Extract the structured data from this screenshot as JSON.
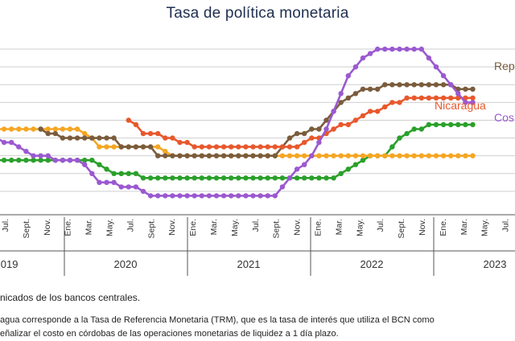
{
  "chart_data": {
    "type": "line",
    "title": "Tasa de política monetaria",
    "x_month_labels": [
      "Jul.",
      "Sept.",
      "Nov.",
      "Ene.",
      "Mar.",
      "May.",
      "Jul.",
      "Sept.",
      "Nov.",
      "Ene.",
      "Mar.",
      "May.",
      "Jul.",
      "Sept.",
      "Nov.",
      "Ene.",
      "Mar.",
      "May.",
      "Jul.",
      "Sept.",
      "Nov.",
      "Ene.",
      "Mar.",
      "May.",
      "Jul."
    ],
    "x_year_labels": [
      "2019",
      "2020",
      "2021",
      "2022",
      "2023"
    ],
    "series_labels": [
      {
        "key": "rd",
        "text": "Rep"
      },
      {
        "key": "ni",
        "text": "Nicaragua"
      },
      {
        "key": "cr",
        "text": "Cos"
      }
    ],
    "colors": {
      "rd": "#7a5c3c",
      "ni": "#e8582c",
      "cr": "#9b59d0",
      "gt": "#2ba02b",
      "or": "#f5a623",
      "grid": "#cfcfcf"
    },
    "series": [
      {
        "key": "rd",
        "points": [
          [
            6,
            4.5
          ],
          [
            7,
            4.25
          ],
          [
            8,
            4.25
          ],
          [
            9,
            4.0
          ],
          [
            10,
            4.0
          ],
          [
            11,
            4.0
          ],
          [
            12,
            4.0
          ],
          [
            13,
            4.0
          ],
          [
            14,
            4.0
          ],
          [
            15,
            4.0
          ],
          [
            16,
            4.0
          ],
          [
            17,
            3.5
          ],
          [
            18,
            3.5
          ],
          [
            19,
            3.5
          ],
          [
            20,
            3.5
          ],
          [
            21,
            3.5
          ],
          [
            22,
            3.0
          ],
          [
            23,
            3.0
          ],
          [
            24,
            3.0
          ],
          [
            25,
            3.0
          ],
          [
            26,
            3.0
          ],
          [
            27,
            3.0
          ],
          [
            28,
            3.0
          ],
          [
            29,
            3.0
          ],
          [
            30,
            3.0
          ],
          [
            31,
            3.0
          ],
          [
            32,
            3.0
          ],
          [
            33,
            3.0
          ],
          [
            34,
            3.0
          ],
          [
            35,
            3.0
          ],
          [
            36,
            3.0
          ],
          [
            37,
            3.0
          ],
          [
            38,
            3.0
          ],
          [
            39,
            3.5
          ],
          [
            40,
            4.0
          ],
          [
            41,
            4.25
          ],
          [
            42,
            4.25
          ],
          [
            43,
            4.5
          ],
          [
            44,
            4.5
          ],
          [
            45,
            5.0
          ],
          [
            46,
            5.5
          ],
          [
            47,
            6.0
          ],
          [
            48,
            6.25
          ],
          [
            49,
            6.5
          ],
          [
            50,
            6.75
          ],
          [
            51,
            6.75
          ],
          [
            52,
            6.75
          ],
          [
            53,
            7.0
          ],
          [
            54,
            7.0
          ],
          [
            55,
            7.0
          ],
          [
            56,
            7.0
          ],
          [
            57,
            7.0
          ],
          [
            58,
            7.0
          ],
          [
            59,
            7.0
          ],
          [
            60,
            7.0
          ],
          [
            61,
            7.0
          ],
          [
            62,
            7.0
          ],
          [
            63,
            6.75
          ],
          [
            64,
            6.75
          ],
          [
            65,
            6.75
          ]
        ]
      },
      {
        "key": "ni",
        "points": [
          [
            18,
            5.0
          ],
          [
            19,
            4.75
          ],
          [
            20,
            4.25
          ],
          [
            21,
            4.25
          ],
          [
            22,
            4.25
          ],
          [
            23,
            4.0
          ],
          [
            24,
            4.0
          ],
          [
            25,
            3.75
          ],
          [
            26,
            3.75
          ],
          [
            27,
            3.5
          ],
          [
            28,
            3.5
          ],
          [
            29,
            3.5
          ],
          [
            30,
            3.5
          ],
          [
            31,
            3.5
          ],
          [
            32,
            3.5
          ],
          [
            33,
            3.5
          ],
          [
            34,
            3.5
          ],
          [
            35,
            3.5
          ],
          [
            36,
            3.5
          ],
          [
            37,
            3.5
          ],
          [
            38,
            3.5
          ],
          [
            39,
            3.5
          ],
          [
            40,
            3.5
          ],
          [
            41,
            3.5
          ],
          [
            42,
            3.75
          ],
          [
            43,
            4.0
          ],
          [
            44,
            4.0
          ],
          [
            45,
            4.25
          ],
          [
            46,
            4.5
          ],
          [
            47,
            4.75
          ],
          [
            48,
            4.75
          ],
          [
            49,
            5.0
          ],
          [
            50,
            5.25
          ],
          [
            51,
            5.5
          ],
          [
            52,
            5.5
          ],
          [
            53,
            5.75
          ],
          [
            54,
            6.0
          ],
          [
            55,
            6.0
          ],
          [
            56,
            6.25
          ],
          [
            57,
            6.25
          ],
          [
            58,
            6.25
          ],
          [
            59,
            6.25
          ],
          [
            60,
            6.25
          ],
          [
            61,
            6.25
          ],
          [
            62,
            6.25
          ],
          [
            63,
            6.25
          ],
          [
            64,
            6.25
          ],
          [
            65,
            6.25
          ]
        ]
      },
      {
        "key": "cr",
        "points": [
          [
            0,
            4.0
          ],
          [
            1,
            3.75
          ],
          [
            2,
            3.75
          ],
          [
            3,
            3.5
          ],
          [
            4,
            3.25
          ],
          [
            5,
            3.0
          ],
          [
            6,
            3.0
          ],
          [
            7,
            3.0
          ],
          [
            8,
            2.75
          ],
          [
            9,
            2.75
          ],
          [
            10,
            2.75
          ],
          [
            11,
            2.75
          ],
          [
            12,
            2.5
          ],
          [
            13,
            2.0
          ],
          [
            14,
            1.5
          ],
          [
            15,
            1.5
          ],
          [
            16,
            1.5
          ],
          [
            17,
            1.25
          ],
          [
            18,
            1.25
          ],
          [
            19,
            1.25
          ],
          [
            20,
            1.0
          ],
          [
            21,
            0.75
          ],
          [
            22,
            0.75
          ],
          [
            23,
            0.75
          ],
          [
            24,
            0.75
          ],
          [
            25,
            0.75
          ],
          [
            26,
            0.75
          ],
          [
            27,
            0.75
          ],
          [
            28,
            0.75
          ],
          [
            29,
            0.75
          ],
          [
            30,
            0.75
          ],
          [
            31,
            0.75
          ],
          [
            32,
            0.75
          ],
          [
            33,
            0.75
          ],
          [
            34,
            0.75
          ],
          [
            35,
            0.75
          ],
          [
            36,
            0.75
          ],
          [
            37,
            0.75
          ],
          [
            38,
            0.75
          ],
          [
            39,
            1.25
          ],
          [
            40,
            1.75
          ],
          [
            41,
            2.25
          ],
          [
            42,
            2.5
          ],
          [
            43,
            3.0
          ],
          [
            44,
            3.75
          ],
          [
            45,
            4.5
          ],
          [
            46,
            5.5
          ],
          [
            47,
            6.5
          ],
          [
            48,
            7.5
          ],
          [
            49,
            8.0
          ],
          [
            50,
            8.5
          ],
          [
            51,
            8.75
          ],
          [
            52,
            9.0
          ],
          [
            53,
            9.0
          ],
          [
            54,
            9.0
          ],
          [
            55,
            9.0
          ],
          [
            56,
            9.0
          ],
          [
            57,
            9.0
          ],
          [
            58,
            9.0
          ],
          [
            59,
            8.5
          ],
          [
            60,
            8.0
          ],
          [
            61,
            7.5
          ],
          [
            62,
            7.0
          ],
          [
            63,
            6.5
          ],
          [
            64,
            6.0
          ],
          [
            65,
            6.0
          ]
        ]
      },
      {
        "key": "gt",
        "points": [
          [
            0,
            2.75
          ],
          [
            1,
            2.75
          ],
          [
            2,
            2.75
          ],
          [
            3,
            2.75
          ],
          [
            4,
            2.75
          ],
          [
            5,
            2.75
          ],
          [
            6,
            2.75
          ],
          [
            7,
            2.75
          ],
          [
            8,
            2.75
          ],
          [
            9,
            2.75
          ],
          [
            10,
            2.75
          ],
          [
            11,
            2.75
          ],
          [
            12,
            2.75
          ],
          [
            13,
            2.75
          ],
          [
            14,
            2.5
          ],
          [
            15,
            2.25
          ],
          [
            16,
            2.0
          ],
          [
            17,
            2.0
          ],
          [
            18,
            2.0
          ],
          [
            19,
            2.0
          ],
          [
            20,
            1.75
          ],
          [
            21,
            1.75
          ],
          [
            22,
            1.75
          ],
          [
            23,
            1.75
          ],
          [
            24,
            1.75
          ],
          [
            25,
            1.75
          ],
          [
            26,
            1.75
          ],
          [
            27,
            1.75
          ],
          [
            28,
            1.75
          ],
          [
            29,
            1.75
          ],
          [
            30,
            1.75
          ],
          [
            31,
            1.75
          ],
          [
            32,
            1.75
          ],
          [
            33,
            1.75
          ],
          [
            34,
            1.75
          ],
          [
            35,
            1.75
          ],
          [
            36,
            1.75
          ],
          [
            37,
            1.75
          ],
          [
            38,
            1.75
          ],
          [
            39,
            1.75
          ],
          [
            40,
            1.75
          ],
          [
            41,
            1.75
          ],
          [
            42,
            1.75
          ],
          [
            43,
            1.75
          ],
          [
            44,
            1.75
          ],
          [
            45,
            1.75
          ],
          [
            46,
            1.75
          ],
          [
            47,
            2.0
          ],
          [
            48,
            2.25
          ],
          [
            49,
            2.5
          ],
          [
            50,
            2.75
          ],
          [
            51,
            3.0
          ],
          [
            52,
            3.0
          ],
          [
            53,
            3.0
          ],
          [
            54,
            3.5
          ],
          [
            55,
            4.0
          ],
          [
            56,
            4.25
          ],
          [
            57,
            4.5
          ],
          [
            58,
            4.5
          ],
          [
            59,
            4.75
          ],
          [
            60,
            4.75
          ],
          [
            61,
            4.75
          ],
          [
            62,
            4.75
          ],
          [
            63,
            4.75
          ],
          [
            64,
            4.75
          ],
          [
            65,
            4.75
          ]
        ]
      },
      {
        "key": "or",
        "points": [
          [
            0,
            4.5
          ],
          [
            1,
            4.5
          ],
          [
            2,
            4.5
          ],
          [
            3,
            4.5
          ],
          [
            4,
            4.5
          ],
          [
            5,
            4.5
          ],
          [
            6,
            4.5
          ],
          [
            7,
            4.5
          ],
          [
            8,
            4.5
          ],
          [
            9,
            4.5
          ],
          [
            10,
            4.5
          ],
          [
            11,
            4.5
          ],
          [
            12,
            4.25
          ],
          [
            13,
            4.0
          ],
          [
            14,
            3.5
          ],
          [
            15,
            3.5
          ],
          [
            16,
            3.5
          ],
          [
            17,
            3.5
          ],
          [
            18,
            3.5
          ],
          [
            19,
            3.5
          ],
          [
            20,
            3.5
          ],
          [
            21,
            3.5
          ],
          [
            22,
            3.5
          ],
          [
            23,
            3.25
          ],
          [
            24,
            3.0
          ],
          [
            25,
            3.0
          ],
          [
            26,
            3.0
          ],
          [
            27,
            3.0
          ],
          [
            28,
            3.0
          ],
          [
            29,
            3.0
          ],
          [
            30,
            3.0
          ],
          [
            31,
            3.0
          ],
          [
            32,
            3.0
          ],
          [
            33,
            3.0
          ],
          [
            34,
            3.0
          ],
          [
            35,
            3.0
          ],
          [
            36,
            3.0
          ],
          [
            37,
            3.0
          ],
          [
            38,
            3.0
          ],
          [
            39,
            3.0
          ],
          [
            40,
            3.0
          ],
          [
            41,
            3.0
          ],
          [
            42,
            3.0
          ],
          [
            43,
            3.0
          ],
          [
            44,
            3.0
          ],
          [
            45,
            3.0
          ],
          [
            46,
            3.0
          ],
          [
            47,
            3.0
          ],
          [
            48,
            3.0
          ],
          [
            49,
            3.0
          ],
          [
            50,
            3.0
          ],
          [
            51,
            3.0
          ],
          [
            52,
            3.0
          ],
          [
            53,
            3.0
          ],
          [
            54,
            3.0
          ],
          [
            55,
            3.0
          ],
          [
            56,
            3.0
          ],
          [
            57,
            3.0
          ],
          [
            58,
            3.0
          ],
          [
            59,
            3.0
          ],
          [
            60,
            3.0
          ],
          [
            61,
            3.0
          ],
          [
            62,
            3.0
          ],
          [
            63,
            3.0
          ],
          [
            64,
            3.0
          ],
          [
            65,
            3.0
          ]
        ]
      }
    ]
  },
  "notes": {
    "source": "nicados de los bancos centrales.",
    "line1": "agua corresponde a la Tasa de Referencia Monetaria (TRM), que es la tasa de interés que utiliza el BCN como",
    "line2": "eñalizar el costo en córdobas de las operaciones monetarias de liquidez a 1 día plazo."
  }
}
